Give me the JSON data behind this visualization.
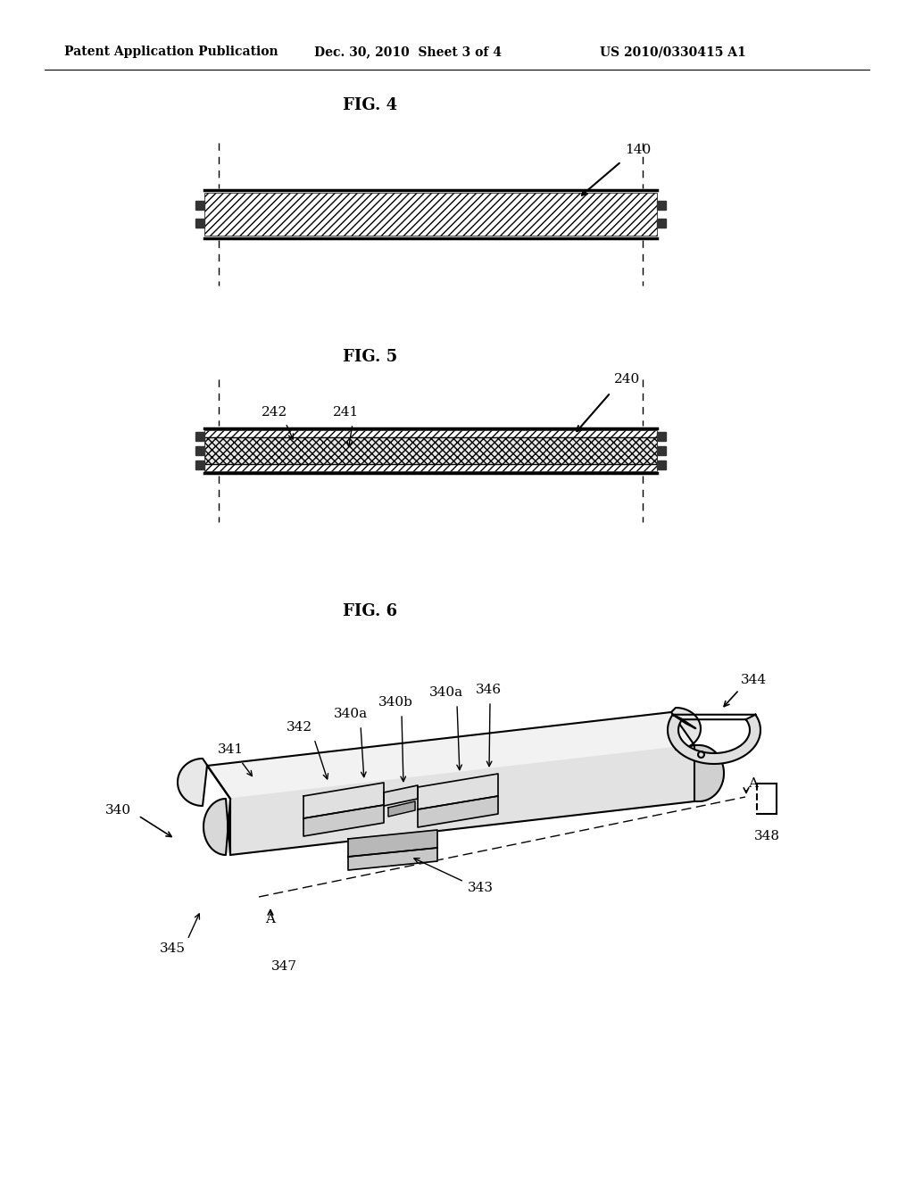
{
  "header_left": "Patent Application Publication",
  "header_mid": "Dec. 30, 2010  Sheet 3 of 4",
  "header_right": "US 2010/0330415 A1",
  "fig4_label": "FIG. 4",
  "fig5_label": "FIG. 5",
  "fig6_label": "FIG. 6",
  "bg_color": "#ffffff"
}
